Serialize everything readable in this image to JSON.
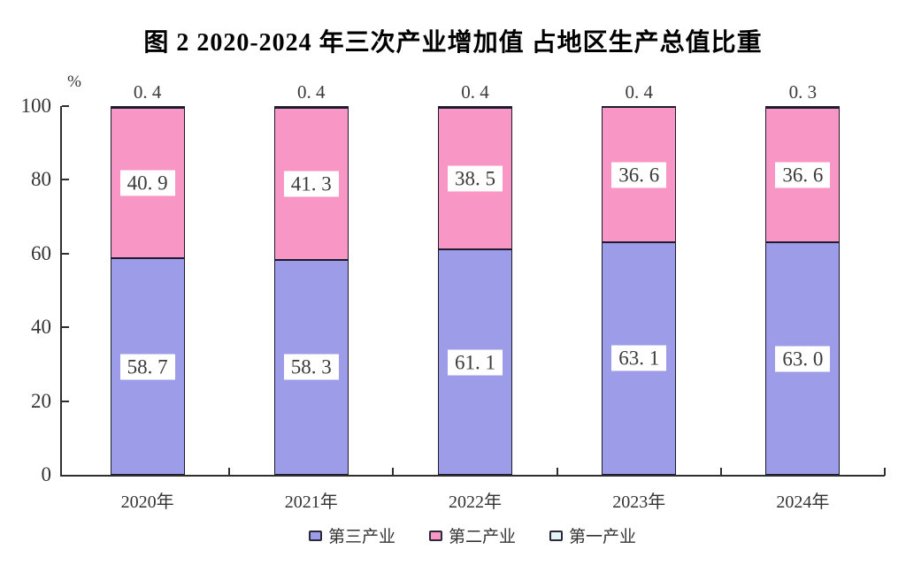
{
  "chart_data": {
    "type": "bar",
    "stacked": true,
    "title": "图 2  2020-2024 年三次产业增加值 占地区生产总值比重",
    "y_unit": "%",
    "categories": [
      "2020年",
      "2021年",
      "2022年",
      "2023年",
      "2024年"
    ],
    "series": [
      {
        "name": "第三产业",
        "color": "#9c9ce8",
        "values": [
          58.7,
          58.3,
          61.1,
          63.1,
          63.0
        ],
        "labels": [
          "58. 7",
          "58. 3",
          "61. 1",
          "63. 1",
          "63. 0"
        ],
        "label_style": "inside-box"
      },
      {
        "name": "第二产业",
        "color": "#f897c6",
        "values": [
          40.9,
          41.3,
          38.5,
          36.6,
          36.6
        ],
        "labels": [
          "40. 9",
          "41. 3",
          "38. 5",
          "36. 6",
          "36. 6"
        ],
        "label_style": "inside-box"
      },
      {
        "name": "第一产业",
        "color": "#e4f7f8",
        "values": [
          0.4,
          0.4,
          0.4,
          0.4,
          0.3
        ],
        "labels": [
          "0. 4",
          "0. 4",
          "0. 4",
          "0. 4",
          "0. 3"
        ],
        "label_style": "above"
      }
    ],
    "ylim": [
      0,
      100
    ],
    "yticks": [
      0,
      20,
      40,
      60,
      80,
      100
    ],
    "grid": false,
    "legend_position": "bottom",
    "colors": {
      "bar_border": "#1c1c2e",
      "axis": "#2f2f2f",
      "label_box_bg": "#ffffff",
      "text": "#333333"
    }
  }
}
